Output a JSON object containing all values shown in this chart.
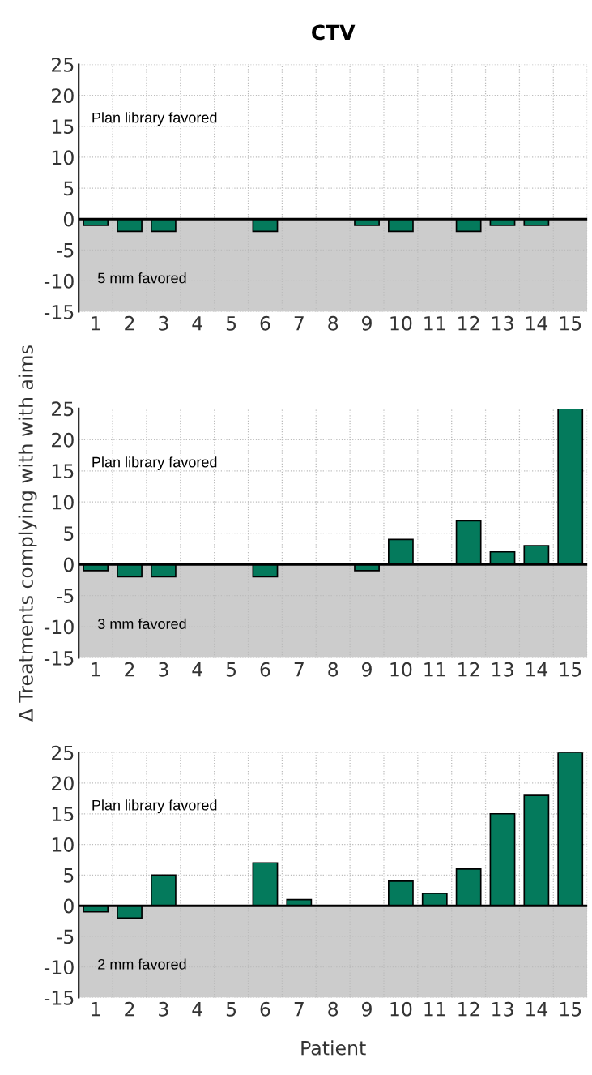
{
  "chart_data": [
    {
      "type": "bar",
      "title": "CTV",
      "categories": [
        "1",
        "2",
        "3",
        "4",
        "5",
        "6",
        "7",
        "8",
        "9",
        "10",
        "11",
        "12",
        "13",
        "14",
        "15"
      ],
      "values": [
        -1,
        -2,
        -2,
        0,
        0,
        -2,
        0,
        0,
        -1,
        -2,
        0,
        -2,
        -1,
        -1,
        0
      ],
      "color": "#047a5c",
      "ylim": [
        -15,
        25
      ],
      "yticks": [
        -15,
        -10,
        -5,
        0,
        5,
        10,
        15,
        20,
        25
      ],
      "grid": true,
      "ref_lines": [
        {
          "axis": "y",
          "value": 0,
          "color": "#000000"
        }
      ],
      "bands": [
        {
          "axis": "y",
          "from": -15,
          "to": 0,
          "label": "5 mm favored",
          "color": "#cccccc"
        }
      ],
      "annotations": [
        "Plan library favored"
      ]
    },
    {
      "type": "bar",
      "ylabel": "Δ Treatments complying with with aims",
      "categories": [
        "1",
        "2",
        "3",
        "4",
        "5",
        "6",
        "7",
        "8",
        "9",
        "10",
        "11",
        "12",
        "13",
        "14",
        "15"
      ],
      "values": [
        -1,
        -2,
        -2,
        0,
        0,
        -2,
        0,
        0,
        -1,
        4,
        0,
        7,
        2,
        3,
        25
      ],
      "color": "#047a5c",
      "ylim": [
        -15,
        25
      ],
      "yticks": [
        -15,
        -10,
        -5,
        0,
        5,
        10,
        15,
        20,
        25
      ],
      "grid": true,
      "ref_lines": [
        {
          "axis": "y",
          "value": 0,
          "color": "#000000"
        }
      ],
      "bands": [
        {
          "axis": "y",
          "from": -15,
          "to": 0,
          "label": "3 mm favored",
          "color": "#cccccc"
        }
      ],
      "annotations": [
        "Plan library favored"
      ]
    },
    {
      "type": "bar",
      "xlabel": "Patient",
      "categories": [
        "1",
        "2",
        "3",
        "4",
        "5",
        "6",
        "7",
        "8",
        "9",
        "10",
        "11",
        "12",
        "13",
        "14",
        "15"
      ],
      "values": [
        -1,
        -2,
        5,
        0,
        0,
        7,
        1,
        0,
        0,
        4,
        2,
        6,
        15,
        18,
        25
      ],
      "color": "#047a5c",
      "ylim": [
        -15,
        25
      ],
      "yticks": [
        -15,
        -10,
        -5,
        0,
        5,
        10,
        15,
        20,
        25
      ],
      "grid": true,
      "ref_lines": [
        {
          "axis": "y",
          "value": 0,
          "color": "#000000"
        }
      ],
      "bands": [
        {
          "axis": "y",
          "from": -15,
          "to": 0,
          "label": "2 mm favored",
          "color": "#cccccc"
        }
      ],
      "annotations": [
        "Plan library favored"
      ]
    }
  ]
}
